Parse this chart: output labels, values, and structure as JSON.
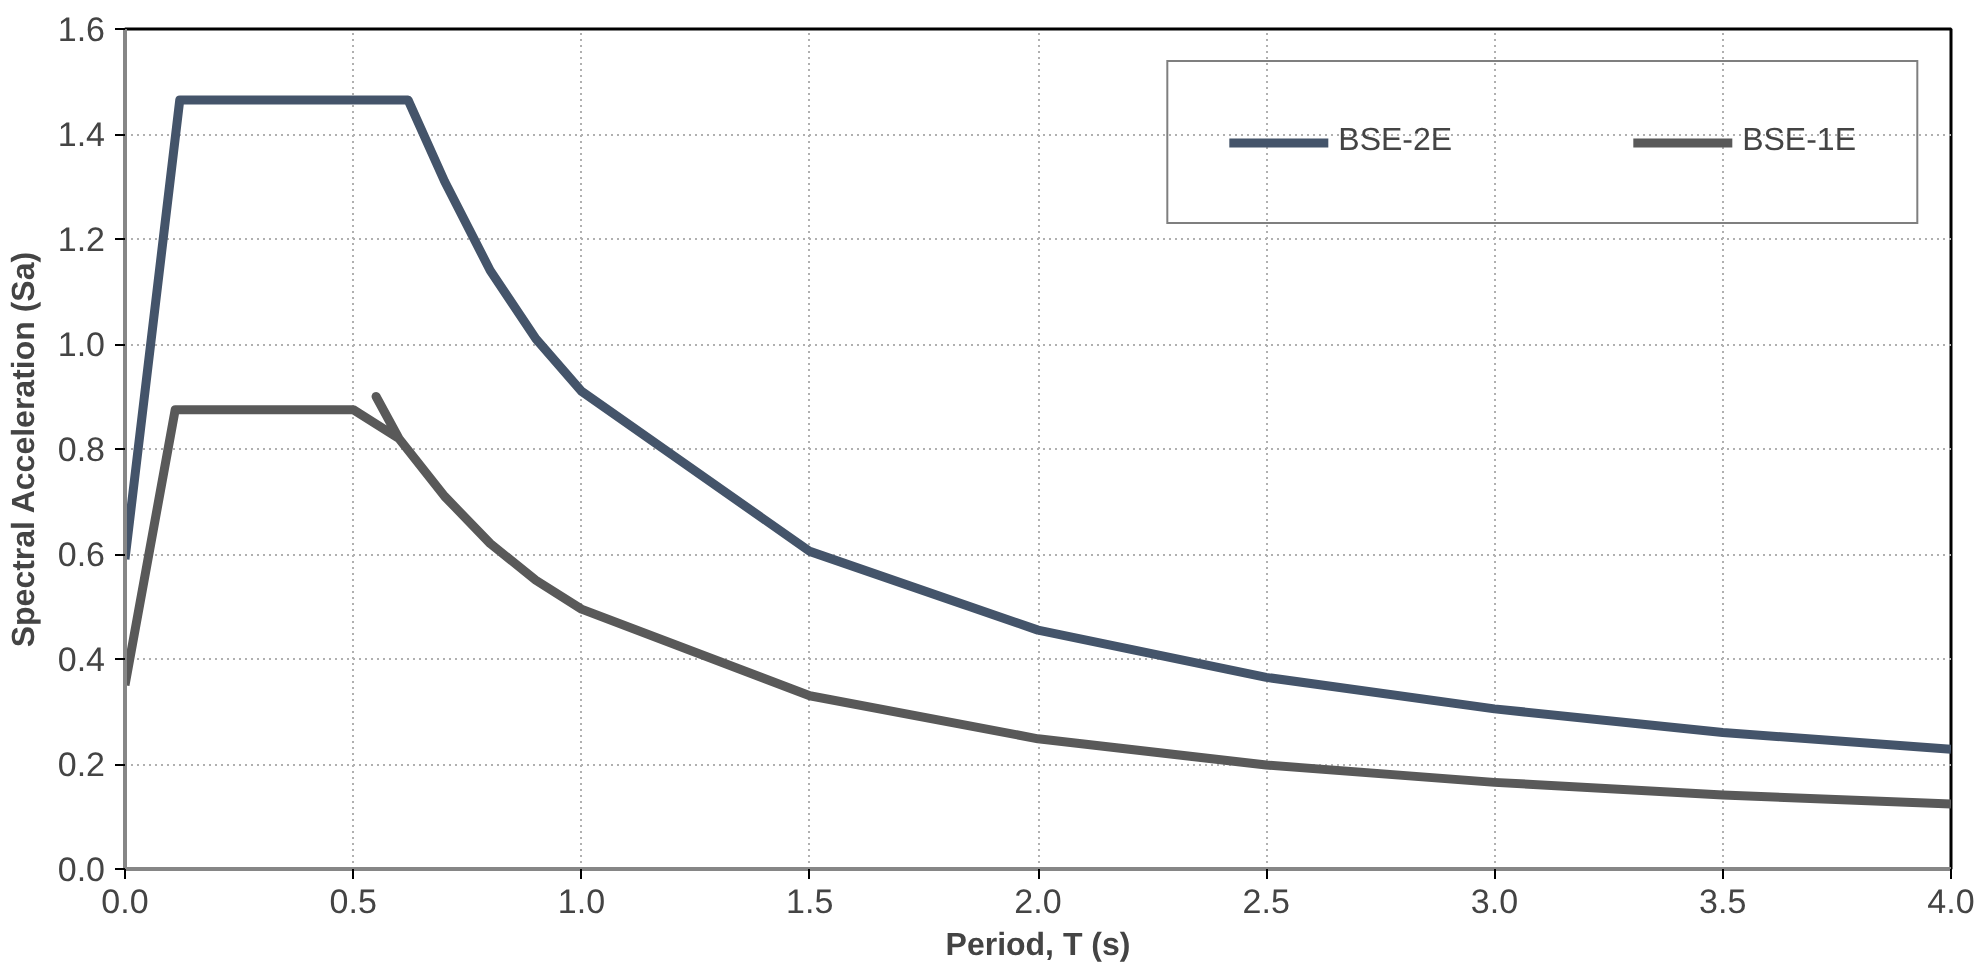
{
  "chart_data": {
    "type": "line",
    "xlabel": "Period, T (s)",
    "ylabel": "Spectral Acceleration (Sa)",
    "xlim": [
      0,
      4
    ],
    "ylim": [
      0,
      1.6
    ],
    "xticks": [
      {
        "value": 0,
        "label": "0.0"
      },
      0.5,
      {
        "value": 1,
        "label": "1.0"
      },
      1.5,
      {
        "value": 2,
        "label": "2.0"
      },
      2.5,
      {
        "value": 3,
        "label": "3.0"
      },
      3.5,
      {
        "value": 4,
        "label": "4.0"
      }
    ],
    "yticks": [
      {
        "value": 0,
        "label": "0.0"
      },
      0.2,
      0.4,
      0.6,
      0.8,
      {
        "value": 1,
        "label": "1.0"
      },
      1.2,
      1.4,
      1.6
    ],
    "grid": true,
    "legend": "top right",
    "marker": "none",
    "line_style": "solid",
    "series": [
      {
        "name": "BSE-2E",
        "color": "#44546a",
        "x": [
          0,
          0.12,
          0.62,
          0.7,
          0.8,
          0.9,
          1.0,
          1.5,
          2.0,
          2.5,
          3.0,
          3.5,
          4.0
        ],
        "values": [
          0.59,
          1.465,
          1.465,
          1.31,
          1.14,
          1.01,
          0.91,
          0.605,
          0.455,
          0.365,
          0.305,
          0.26,
          0.228
        ]
      },
      {
        "name": "BSE-1E",
        "color": "#595959",
        "x": [
          0,
          0.11,
          0.5,
          0.6,
          0.55,
          0.6,
          0.7,
          0.8,
          0.9,
          1.0,
          1.5,
          2.0,
          2.5,
          3.0,
          3.5,
          4.0
        ],
        "values": [
          0.35,
          0.875,
          0.875,
          0.82,
          0.9,
          0.82,
          0.71,
          0.62,
          0.55,
          0.495,
          0.33,
          0.248,
          0.198,
          0.165,
          0.141,
          0.124
        ]
      }
    ]
  }
}
